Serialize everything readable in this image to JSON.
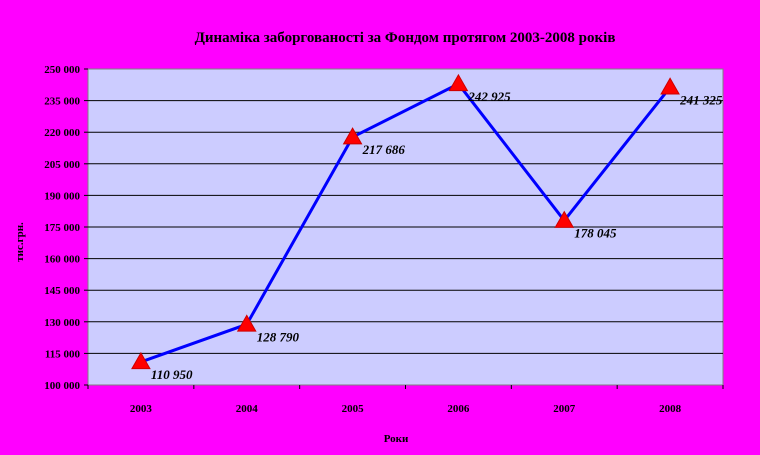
{
  "chart_data": {
    "type": "line",
    "title": "Динаміка заборгованості за Фондом протягом 2003-2008 років",
    "xlabel": "Роки",
    "ylabel": "тис.грн.",
    "categories": [
      "2003",
      "2004",
      "2005",
      "2006",
      "2007",
      "2008"
    ],
    "series": [
      {
        "values": [
          110950,
          128790,
          217686,
          242925,
          178045,
          241325
        ],
        "labels": [
          "110 950",
          "128 790",
          "217 686",
          "242 925",
          "178 045",
          "241 325"
        ]
      }
    ],
    "ylim": [
      100000,
      250000
    ],
    "yticks": [
      100000,
      115000,
      130000,
      145000,
      160000,
      175000,
      190000,
      205000,
      220000,
      235000,
      250000
    ],
    "ytick_labels": [
      "100 000",
      "115 000",
      "130 000",
      "145 000",
      "160 000",
      "175 000",
      "190 000",
      "205 000",
      "220 000",
      "235 000",
      "250 000"
    ],
    "grid": true,
    "legend": "none",
    "colors": {
      "background": "#ff00ff",
      "plot_area": "#ccccff",
      "line": "#0000ff",
      "marker": "#ff0000",
      "grid": "#000000"
    },
    "marker": "triangle"
  }
}
